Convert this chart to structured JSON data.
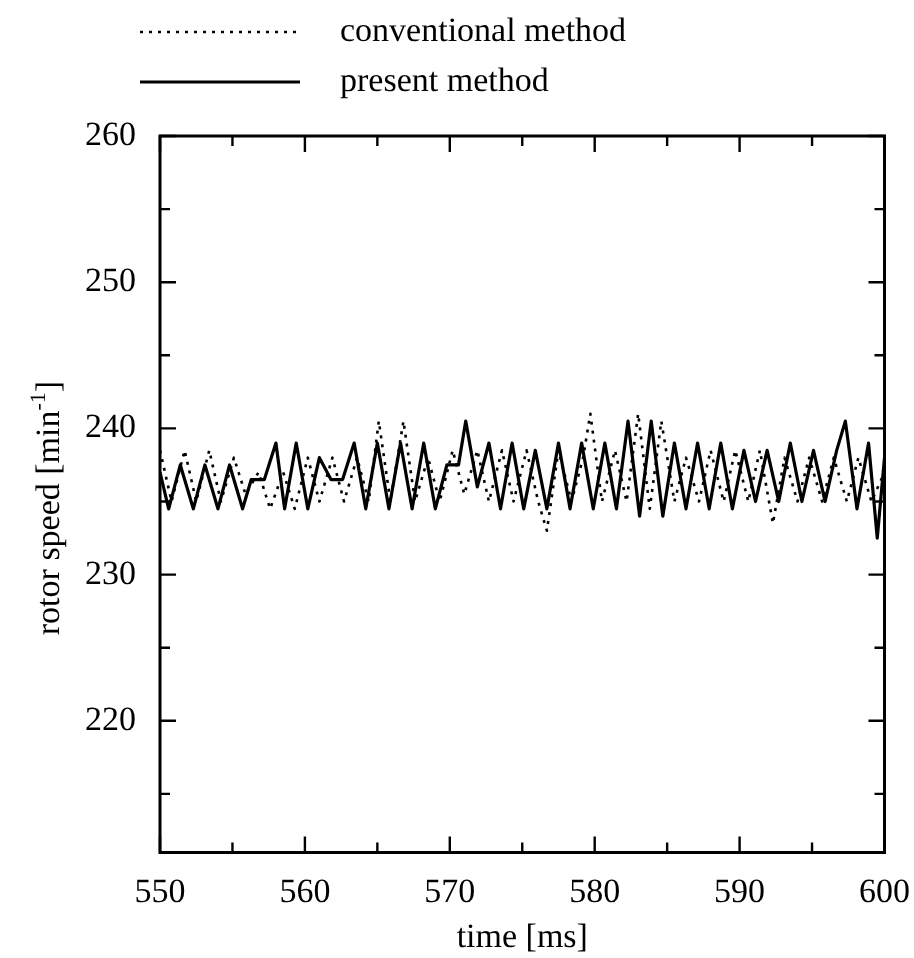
{
  "chart_data": {
    "type": "line",
    "xlabel": "time [ms]",
    "ylabel": "rotor speed [min$^{-1}$]",
    "xlim": [
      550,
      600
    ],
    "xticks": [
      550,
      {
        "value": 555,
        "label": null
      },
      560,
      {
        "value": 565,
        "label": null
      },
      570,
      {
        "value": 575,
        "label": null
      },
      580,
      {
        "value": 585,
        "label": null
      },
      590,
      {
        "value": 595,
        "label": null
      },
      600
    ],
    "ylim": [
      211,
      260
    ],
    "yticks": [
      {
        "value": 215,
        "label": null
      },
      220,
      {
        "value": 225,
        "label": null
      },
      230,
      {
        "value": 235,
        "label": null
      },
      240,
      {
        "value": 245,
        "label": null
      },
      250,
      {
        "value": 255,
        "label": null
      },
      260
    ],
    "legend": "top left",
    "grid": false,
    "marker": "none",
    "series": [
      {
        "name": "conventional method",
        "color": "#000000",
        "line_style": "dotted",
        "x": [
          550,
          550.8,
          551.7,
          552.5,
          553.4,
          554.2,
          555.1,
          555.9,
          556.8,
          557.6,
          558.5,
          559.3,
          560.2,
          561,
          561.9,
          562.7,
          563.6,
          564.4,
          565.1,
          565.9,
          566.8,
          567.6,
          568.5,
          569.3,
          570.2,
          571,
          571.9,
          572.7,
          573.6,
          574.4,
          575.3,
          576.1,
          576.7,
          577.5,
          578.4,
          579.2,
          579.7,
          580.5,
          581.4,
          582.2,
          583,
          583.8,
          584.6,
          585.5,
          586.3,
          587.2,
          588,
          588.9,
          589.7,
          590.6,
          591.4,
          592.3,
          593.1,
          594,
          594.8,
          595.7,
          596.5,
          597.4,
          598.2,
          599.1,
          600
        ],
        "values": [
          238.5,
          235,
          238.5,
          235,
          238.5,
          235,
          238,
          235.5,
          237,
          234.5,
          237,
          234.5,
          238,
          235,
          238,
          235,
          238,
          235,
          240.5,
          235,
          240.5,
          235,
          238,
          235,
          238.5,
          235.5,
          238.5,
          235,
          238.5,
          235,
          238.5,
          235,
          233,
          238.5,
          235,
          238,
          241,
          235,
          238.5,
          235,
          241,
          234.5,
          240.5,
          235,
          238,
          235,
          238.5,
          235,
          238.5,
          235,
          238.5,
          233.5,
          238,
          235,
          238,
          235,
          238,
          235,
          238,
          235,
          237
        ]
      },
      {
        "name": "present method",
        "color": "#000000",
        "line_style": "solid",
        "x": [
          550,
          550.6,
          551.4,
          552.3,
          553.1,
          554,
          554.8,
          555.7,
          556.3,
          557.2,
          558,
          558.6,
          559.4,
          560.2,
          561,
          561.8,
          562.6,
          563.4,
          564.2,
          565,
          565.8,
          566.6,
          567.4,
          568.2,
          569,
          569.8,
          570.6,
          571.1,
          571.9,
          572.7,
          573.5,
          574.3,
          575.1,
          575.9,
          576.7,
          577.5,
          578.3,
          579.1,
          579.9,
          580.7,
          581.5,
          582.3,
          583.1,
          583.9,
          584.7,
          585.5,
          586.3,
          587.1,
          587.9,
          588.7,
          589.5,
          590.3,
          591.1,
          591.9,
          592.7,
          593.5,
          594.3,
          595.1,
          595.9,
          596.7,
          597.3,
          598.1,
          598.9,
          599.5,
          600
        ],
        "values": [
          237,
          234.5,
          237.5,
          234.5,
          237.5,
          234.5,
          237.5,
          234.5,
          236.5,
          236.5,
          239,
          234.5,
          239,
          234.5,
          238,
          236.5,
          236.5,
          239,
          234.5,
          239,
          234.5,
          239,
          234.5,
          239,
          234.5,
          237.5,
          237.5,
          240.5,
          236,
          239,
          234.5,
          239,
          234.5,
          238.5,
          234.5,
          239,
          234.5,
          239,
          234.5,
          239,
          234.5,
          240.5,
          234,
          240.5,
          234,
          239,
          234.5,
          239,
          234.5,
          239,
          234.5,
          238.5,
          235,
          238.5,
          235,
          239,
          235,
          238.5,
          235,
          238.5,
          240.5,
          234.5,
          239,
          232.5,
          238
        ]
      }
    ]
  }
}
